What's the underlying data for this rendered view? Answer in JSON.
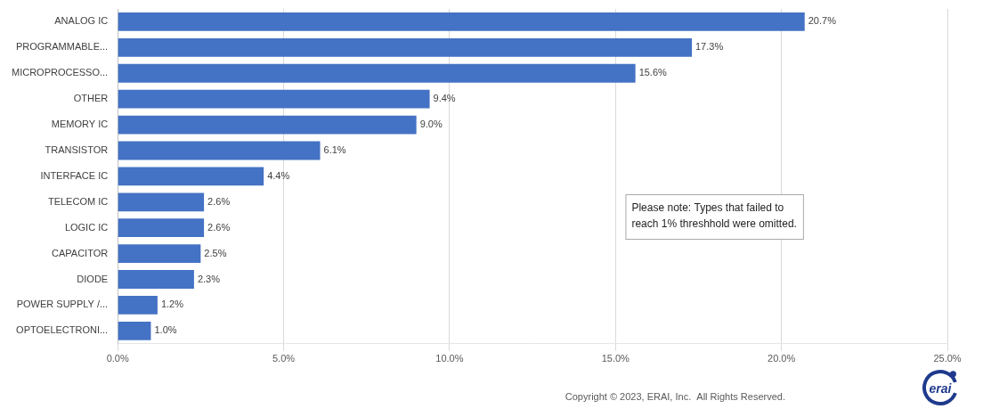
{
  "chart_data": {
    "type": "bar",
    "orientation": "horizontal",
    "categories": [
      "ANALOG IC",
      "PROGRAMMABLE...",
      "MICROPROCESSO...",
      "OTHER",
      "MEMORY IC",
      "TRANSISTOR",
      "INTERFACE IC",
      "TELECOM IC",
      "LOGIC IC",
      "CAPACITOR",
      "DIODE",
      "POWER SUPPLY /...",
      "OPTOELECTRONI..."
    ],
    "values": [
      20.7,
      17.3,
      15.6,
      9.4,
      9.0,
      6.1,
      4.4,
      2.6,
      2.6,
      2.5,
      2.3,
      1.2,
      1.0
    ],
    "value_labels": [
      "20.7%",
      "17.3%",
      "15.6%",
      "9.4%",
      "9.0%",
      "6.1%",
      "4.4%",
      "2.6%",
      "2.6%",
      "2.5%",
      "2.3%",
      "1.2%",
      "1.0%"
    ],
    "data_labels": true,
    "color": "#4472C4",
    "xlim": [
      0,
      25
    ],
    "xticks": [
      {
        "value": 0,
        "label": "0.0%"
      },
      {
        "value": 5,
        "label": "5.0%"
      },
      {
        "value": 10,
        "label": "10.0%"
      },
      {
        "value": 15,
        "label": "15.0%"
      },
      {
        "value": 20,
        "label": "20.0%"
      },
      {
        "value": 25,
        "label": "25.0%"
      }
    ],
    "grid": true,
    "annotations": [
      "Please note: Types that failed to\nreach 1% threshhold were omitted.",
      "Copyright © 2023, ERAI, Inc.  All Rights Reserved.",
      "erai"
    ]
  }
}
